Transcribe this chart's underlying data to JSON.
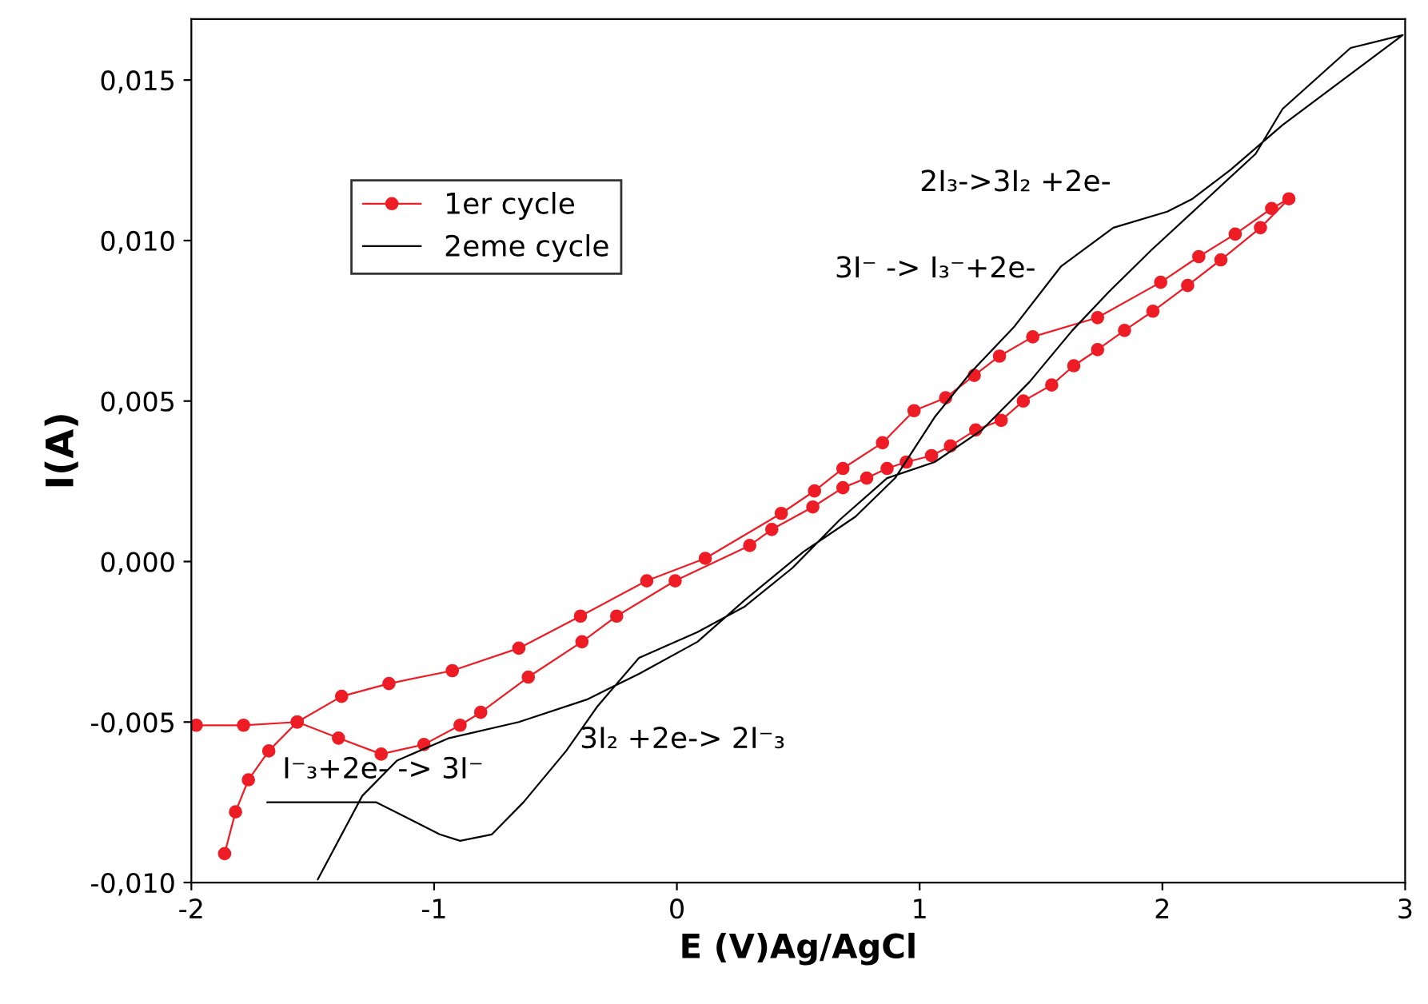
{
  "chart_data": {
    "type": "line",
    "xlabel": "E (V)Ag/AgCl",
    "ylabel": "I(A)",
    "xlim": [
      -2,
      3
    ],
    "xticks": [
      -2,
      -1,
      0,
      1,
      2,
      3
    ],
    "ylim": [
      -0.01,
      0.0169
    ],
    "yticks": [
      {
        "value": -0.01,
        "label": "-0,010"
      },
      {
        "value": -0.005,
        "label": "-0,005"
      },
      {
        "value": 0.0,
        "label": "0,000"
      },
      {
        "value": 0.005,
        "label": "0,005"
      },
      {
        "value": 0.01,
        "label": "0,010"
      },
      {
        "value": 0.015,
        "label": "0,015"
      }
    ],
    "grid": false,
    "legend": "top left",
    "series": [
      {
        "name": "1er cycle",
        "color": "#ee1c25",
        "marker": "circle",
        "x": [
          -1.863,
          -1.818,
          -1.765,
          -1.681,
          -1.564,
          -1.381,
          -1.186,
          -0.925,
          -0.651,
          -0.397,
          -0.124,
          0.117,
          0.43,
          0.567,
          0.684,
          0.847,
          0.977,
          1.107,
          1.225,
          1.329,
          1.466,
          1.733,
          1.993,
          2.15,
          2.3,
          2.45,
          2.521,
          2.404,
          2.241,
          2.104,
          1.961,
          1.844,
          1.733,
          1.635,
          1.544,
          1.427,
          1.336,
          1.231,
          1.127,
          1.049,
          0.945,
          0.866,
          0.782,
          0.684,
          0.56,
          0.391,
          0.3,
          -0.007,
          -0.248,
          -0.391,
          -0.612,
          -0.808,
          -0.893,
          -1.042,
          -1.218,
          -1.394,
          -1.564,
          -1.785,
          -1.98
        ],
        "values": [
          -0.0091,
          -0.0078,
          -0.0068,
          -0.0059,
          -0.005,
          -0.0042,
          -0.0038,
          -0.0034,
          -0.0027,
          -0.0017,
          -0.0006,
          0.0001,
          0.0015,
          0.0022,
          0.0029,
          0.0037,
          0.0047,
          0.0051,
          0.0058,
          0.0064,
          0.007,
          0.0076,
          0.0087,
          0.0095,
          0.0102,
          0.011,
          0.0113,
          0.0104,
          0.0094,
          0.0086,
          0.0078,
          0.0072,
          0.0066,
          0.0061,
          0.0055,
          0.005,
          0.0044,
          0.0041,
          0.0036,
          0.0033,
          0.0031,
          0.0029,
          0.0026,
          0.0023,
          0.0017,
          0.001,
          0.0005,
          -0.0006,
          -0.0017,
          -0.0025,
          -0.0036,
          -0.0047,
          -0.0051,
          -0.0057,
          -0.006,
          -0.0055,
          -0.005,
          -0.0051,
          -0.0051
        ]
      },
      {
        "name": "2eme cycle",
        "color": "#000000",
        "marker": "none",
        "x": [
          -1.479,
          -1.296,
          -1.153,
          -0.938,
          -0.651,
          -0.371,
          -0.156,
          0.085,
          0.28,
          0.521,
          0.736,
          0.899,
          1.062,
          1.212,
          1.388,
          1.583,
          1.798,
          2.02,
          2.124,
          2.28,
          2.495,
          2.99,
          2.775,
          2.495,
          2.384,
          2.169,
          1.954,
          1.779,
          1.629,
          1.453,
          1.257,
          1.062,
          0.866,
          0.671,
          0.476,
          0.28,
          0.085,
          -0.156,
          -0.326,
          -0.456,
          -0.632,
          -0.762,
          -0.893,
          -0.977,
          -1.107,
          -1.238,
          -1.687
        ],
        "values": [
          -0.0099,
          -0.0073,
          -0.0062,
          -0.0055,
          -0.005,
          -0.0043,
          -0.0035,
          -0.0025,
          -0.0012,
          0.0003,
          0.0014,
          0.0026,
          0.0045,
          0.0059,
          0.0073,
          0.0092,
          0.0104,
          0.0109,
          0.0113,
          0.0122,
          0.0136,
          0.0164,
          0.016,
          0.0141,
          0.0127,
          0.0112,
          0.0097,
          0.0084,
          0.0072,
          0.0056,
          0.0041,
          0.0031,
          0.0026,
          0.0013,
          -0.0002,
          -0.0014,
          -0.0022,
          -0.003,
          -0.0045,
          -0.0059,
          -0.0075,
          -0.0085,
          -0.0087,
          -0.0085,
          -0.008,
          -0.0075,
          -0.0075
        ]
      }
    ],
    "annotations": [
      "2I₃->3I₂ +2e-",
      "3I⁻ -> I₃⁻+2e-",
      "3I₂ +2e-> 2I⁻₃",
      "I⁻₃+2e- -> 3I⁻"
    ]
  }
}
